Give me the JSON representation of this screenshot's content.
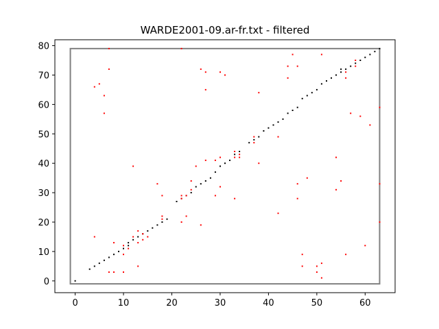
{
  "chart_data": {
    "type": "scatter",
    "title": "WARDE2001-09.ar-fr.txt - filtered",
    "xlabel": "",
    "ylabel": "",
    "xlim": [
      -4.2,
      66.2
    ],
    "ylim": [
      -4.0,
      82.0
    ],
    "xticks": [
      0,
      10,
      20,
      30,
      40,
      50,
      60
    ],
    "yticks": [
      0,
      10,
      20,
      30,
      40,
      50,
      60,
      70,
      80
    ],
    "grid": false,
    "legend": "none",
    "colors": {
      "aligned": "#000000",
      "filtered": "#ff0000",
      "box": "#808080",
      "axes": "#000000"
    },
    "box": {
      "x": [
        -1,
        63
      ],
      "y": [
        -1,
        79
      ]
    },
    "series": [
      {
        "color": "#000000",
        "points": [
          [
            0,
            0
          ],
          [
            3,
            4
          ],
          [
            4,
            5
          ],
          [
            5,
            6
          ],
          [
            6,
            7
          ],
          [
            7,
            8
          ],
          [
            8,
            9
          ],
          [
            9,
            10
          ],
          [
            10,
            11
          ],
          [
            11,
            12
          ],
          [
            11,
            13
          ],
          [
            12,
            14
          ],
          [
            13,
            15
          ],
          [
            14,
            16
          ],
          [
            15,
            17
          ],
          [
            16,
            18
          ],
          [
            17,
            19
          ],
          [
            18,
            20
          ],
          [
            19,
            21
          ],
          [
            21,
            27
          ],
          [
            22,
            28
          ],
          [
            23,
            29
          ],
          [
            24,
            30
          ],
          [
            25,
            32
          ],
          [
            26,
            33
          ],
          [
            27,
            34
          ],
          [
            28,
            35
          ],
          [
            29,
            37
          ],
          [
            30,
            39
          ],
          [
            31,
            40
          ],
          [
            32,
            41
          ],
          [
            33,
            43
          ],
          [
            34,
            44
          ],
          [
            36,
            47
          ],
          [
            37,
            48
          ],
          [
            38,
            49
          ],
          [
            39,
            51
          ],
          [
            40,
            52
          ],
          [
            41,
            53
          ],
          [
            42,
            54
          ],
          [
            43,
            55
          ],
          [
            44,
            57
          ],
          [
            45,
            58
          ],
          [
            46,
            59
          ],
          [
            47,
            62
          ],
          [
            48,
            63
          ],
          [
            49,
            64
          ],
          [
            50,
            65
          ],
          [
            51,
            67
          ],
          [
            52,
            68
          ],
          [
            53,
            69
          ],
          [
            54,
            70
          ],
          [
            55,
            71
          ],
          [
            55,
            72
          ],
          [
            56,
            72
          ],
          [
            57,
            73
          ],
          [
            58,
            74
          ],
          [
            59,
            75
          ],
          [
            60,
            76
          ],
          [
            61,
            77
          ],
          [
            62,
            78
          ],
          [
            63,
            79
          ]
        ]
      },
      {
        "color": "#ff0000",
        "points": [
          [
            7,
            79
          ],
          [
            22,
            79
          ],
          [
            4,
            66
          ],
          [
            5,
            67
          ],
          [
            6,
            63
          ],
          [
            6,
            57
          ],
          [
            7,
            72
          ],
          [
            26,
            72
          ],
          [
            27,
            71
          ],
          [
            27,
            65
          ],
          [
            30,
            71
          ],
          [
            31,
            70
          ],
          [
            38,
            64
          ],
          [
            44,
            69
          ],
          [
            44,
            73
          ],
          [
            45,
            77
          ],
          [
            46,
            73
          ],
          [
            51,
            77
          ],
          [
            56,
            69
          ],
          [
            56,
            71
          ],
          [
            57,
            57
          ],
          [
            58,
            73
          ],
          [
            58,
            75
          ],
          [
            59,
            56
          ],
          [
            61,
            53
          ],
          [
            63,
            59
          ],
          [
            63,
            33
          ],
          [
            63,
            20
          ],
          [
            42,
            49
          ],
          [
            37,
            47
          ],
          [
            37,
            49
          ],
          [
            38,
            40
          ],
          [
            33,
            42
          ],
          [
            33,
            44
          ],
          [
            34,
            42
          ],
          [
            34,
            43
          ],
          [
            30,
            42
          ],
          [
            29,
            41
          ],
          [
            27,
            41
          ],
          [
            25,
            39
          ],
          [
            24,
            34
          ],
          [
            24,
            31
          ],
          [
            22,
            28
          ],
          [
            22,
            29
          ],
          [
            23,
            29
          ],
          [
            17,
            33
          ],
          [
            18,
            29
          ],
          [
            12,
            39
          ],
          [
            30,
            32
          ],
          [
            29,
            29
          ],
          [
            33,
            28
          ],
          [
            26,
            19
          ],
          [
            23,
            22
          ],
          [
            22,
            20
          ],
          [
            18,
            21
          ],
          [
            18,
            22
          ],
          [
            13,
            17
          ],
          [
            14,
            16
          ],
          [
            13,
            13
          ],
          [
            14,
            14
          ],
          [
            15,
            15
          ],
          [
            12,
            15
          ],
          [
            10,
            12
          ],
          [
            10,
            9
          ],
          [
            11,
            11
          ],
          [
            8,
            13
          ],
          [
            4,
            15
          ],
          [
            7,
            3
          ],
          [
            8,
            3
          ],
          [
            10,
            3
          ],
          [
            13,
            5
          ],
          [
            42,
            23
          ],
          [
            46,
            33
          ],
          [
            46,
            28
          ],
          [
            48,
            35
          ],
          [
            47,
            9
          ],
          [
            47,
            5
          ],
          [
            50,
            5
          ],
          [
            50,
            3
          ],
          [
            51,
            6
          ],
          [
            51,
            1
          ],
          [
            54,
            42
          ],
          [
            54,
            31
          ],
          [
            55,
            34
          ],
          [
            56,
            9
          ],
          [
            60,
            12
          ]
        ]
      }
    ]
  }
}
